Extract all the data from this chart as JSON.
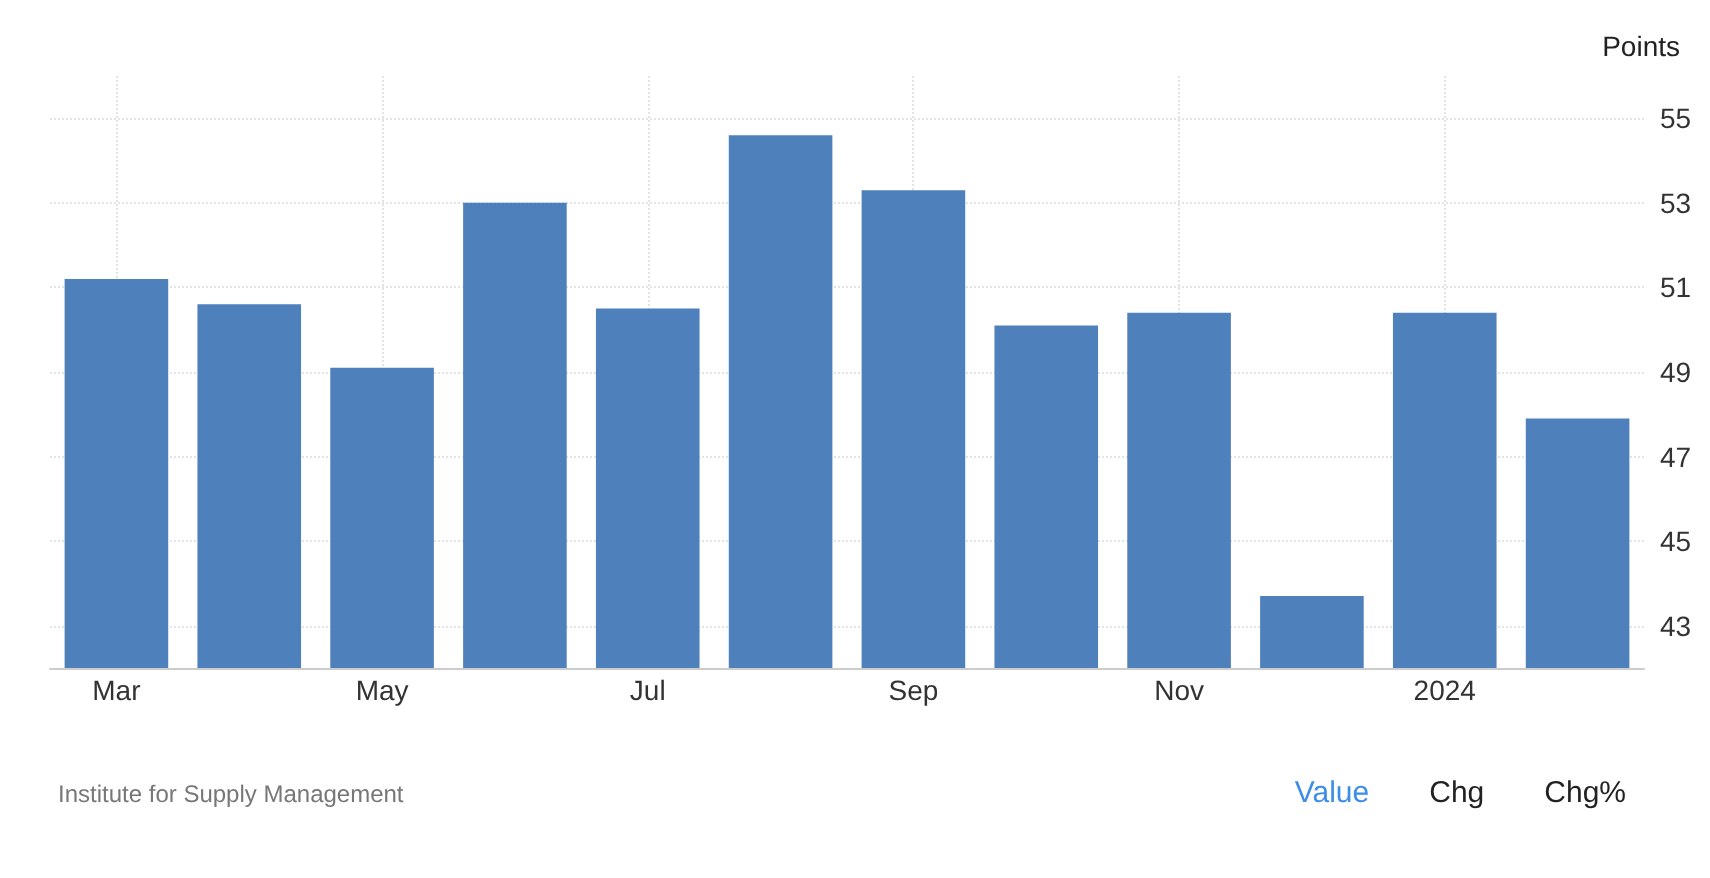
{
  "chart_data": {
    "type": "bar",
    "ylabel": "Points",
    "categories": [
      "Mar",
      null,
      "May",
      null,
      "Jul",
      null,
      "Sep",
      null,
      "Nov",
      null,
      "2024",
      null
    ],
    "values": [
      51.2,
      50.6,
      49.1,
      53.0,
      50.5,
      54.6,
      53.3,
      50.1,
      50.4,
      43.7,
      50.4,
      47.9
    ],
    "color": "#4e80bc",
    "ylim": [
      42,
      56
    ],
    "yticks": [
      43,
      45,
      47,
      49,
      51,
      53,
      55
    ],
    "grid": true,
    "annotations": [
      "Institute for Supply Management",
      "Value",
      "Chg",
      "Chg%"
    ]
  }
}
